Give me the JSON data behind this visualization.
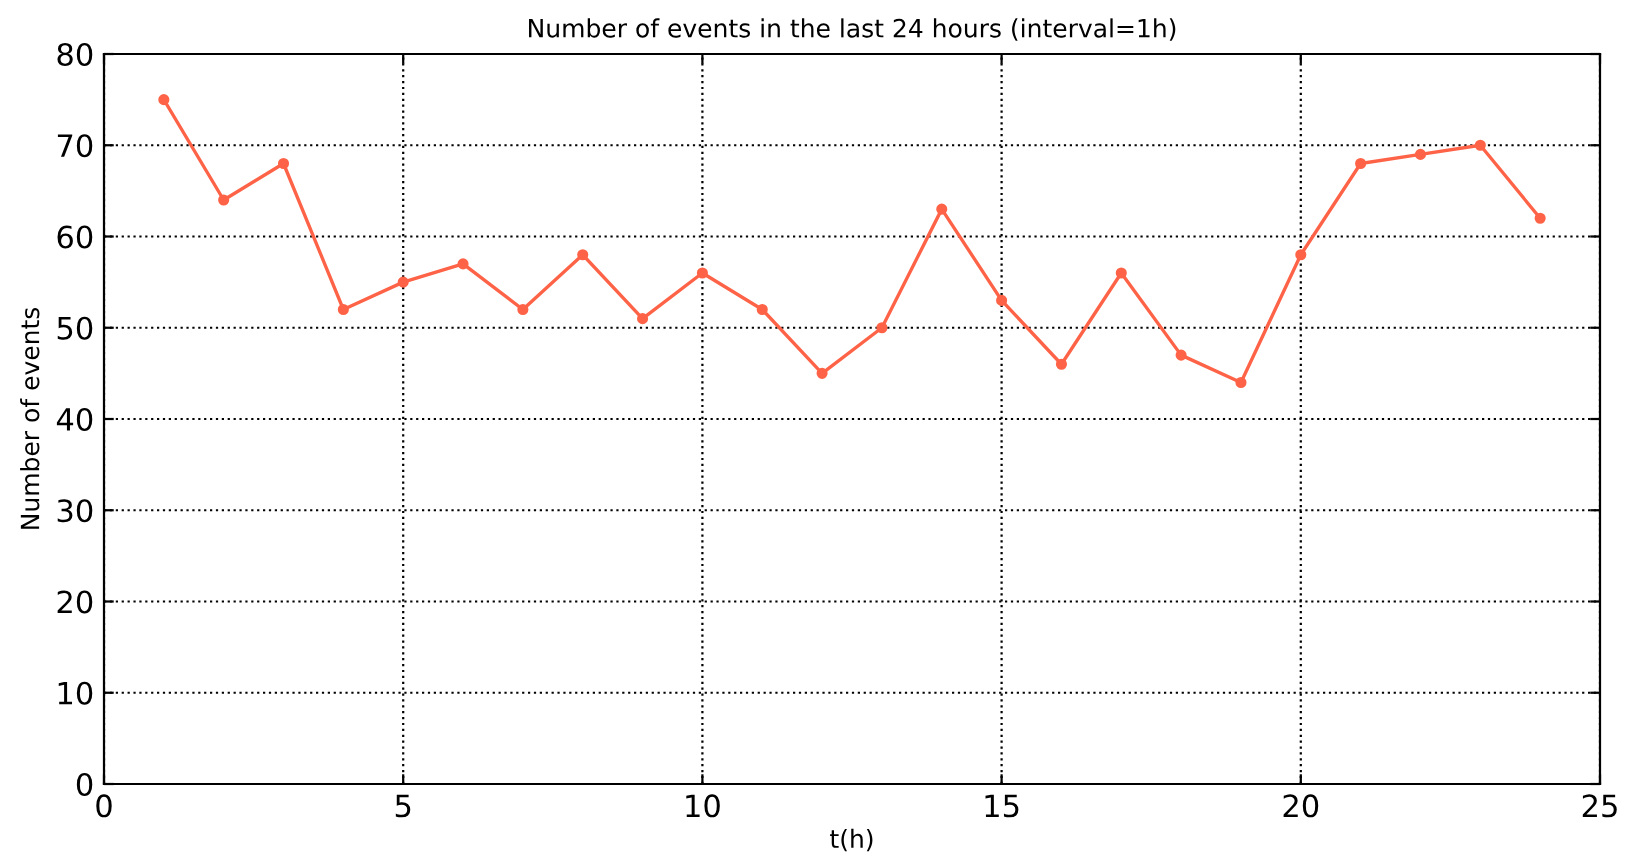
{
  "chart_data": {
    "type": "line",
    "title": "Number of events in the last 24 hours (interval=1h)",
    "xlabel": "t(h)",
    "ylabel": "Number of events",
    "x": [
      1,
      2,
      3,
      4,
      5,
      6,
      7,
      8,
      9,
      10,
      11,
      12,
      13,
      14,
      15,
      16,
      17,
      18,
      19,
      20,
      21,
      22,
      23,
      24
    ],
    "series": [
      {
        "color": "#ff6347",
        "values": [
          75,
          64,
          68,
          52,
          55,
          57,
          52,
          58,
          51,
          56,
          52,
          45,
          50,
          63,
          53,
          46,
          56,
          47,
          44,
          58,
          68,
          69,
          70,
          62
        ]
      }
    ],
    "xlim": [
      0,
      25
    ],
    "xticks": [
      0,
      5,
      10,
      15,
      20,
      25
    ],
    "ylim": [
      0,
      80
    ],
    "yticks": [
      0,
      10,
      20,
      30,
      40,
      50,
      60,
      70,
      80
    ],
    "grid": true,
    "marker": "circle",
    "line_style": "solid",
    "legend": false
  }
}
